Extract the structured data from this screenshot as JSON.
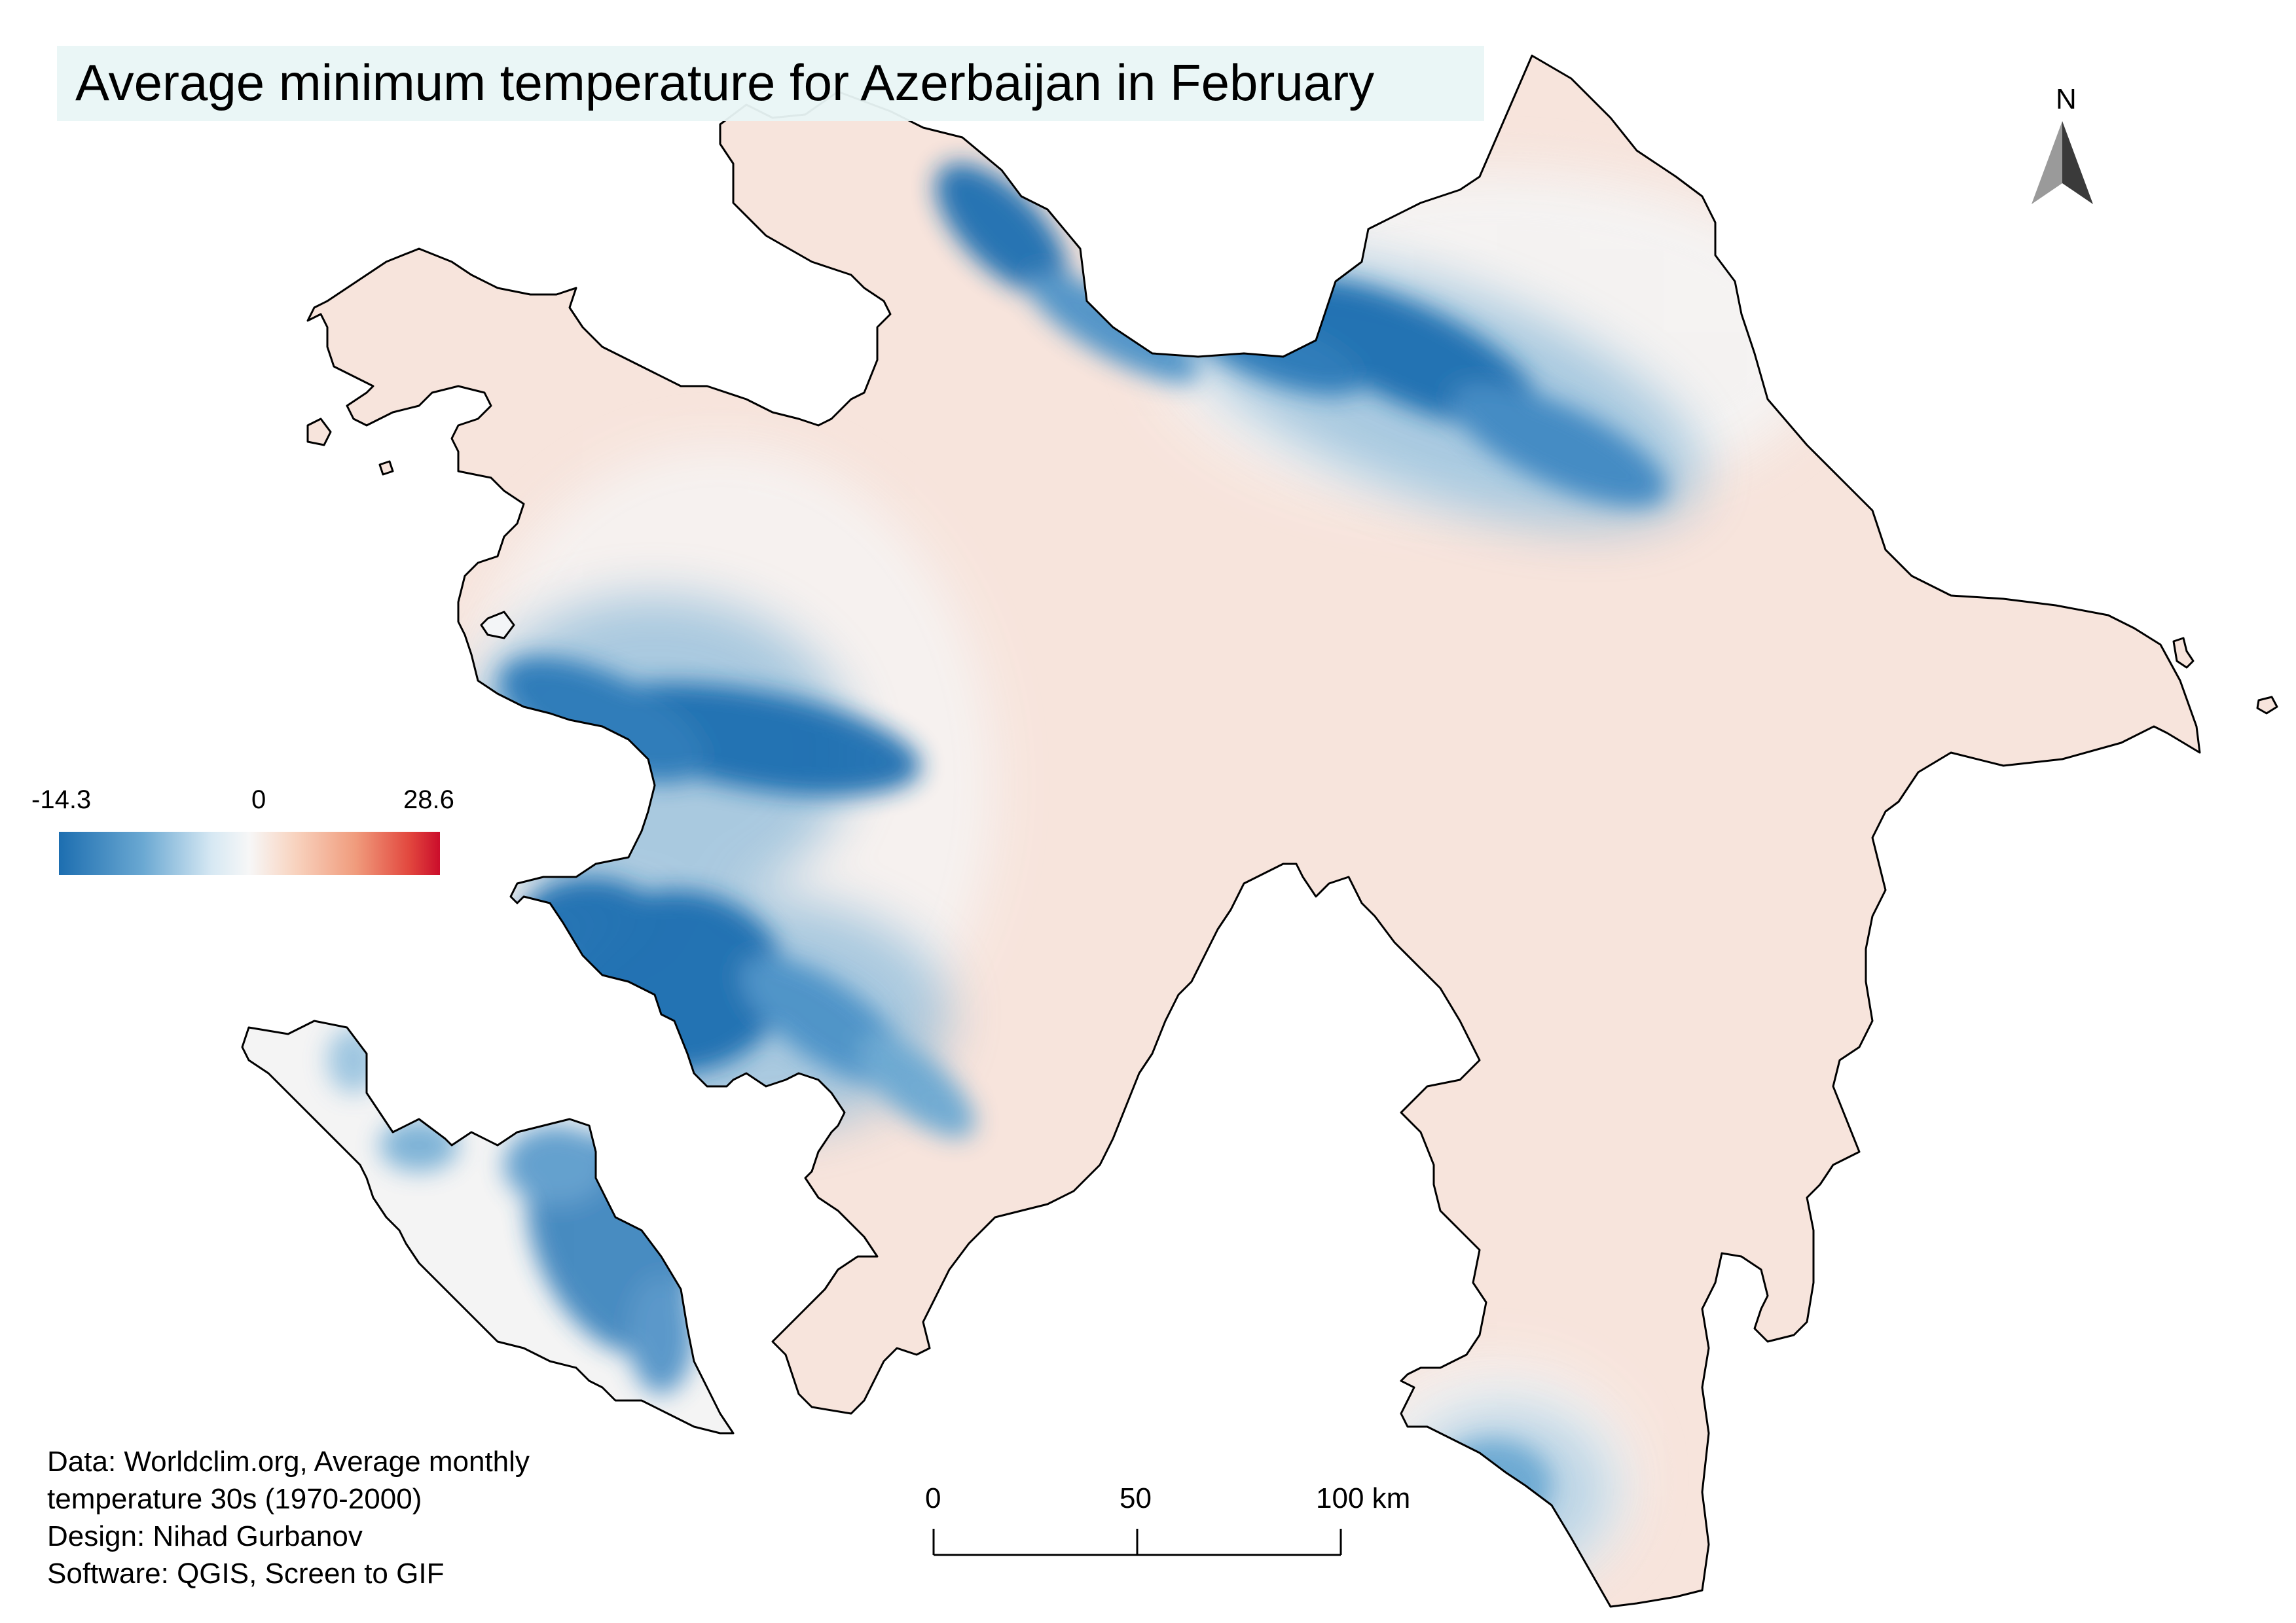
{
  "title": "Average minimum temperature for Azerbaijan in February",
  "legend": {
    "min_label": "-14.3",
    "mid_label": "0",
    "max_label": "28.6",
    "min_value": -14.3,
    "mid_value": 0,
    "max_value": 28.6,
    "colors": {
      "cold": "#1d6eb0",
      "neutral": "#f7f7f7",
      "warm_light": "#f7e4dc",
      "hot": "#cb0d2b"
    }
  },
  "north_arrow": {
    "label": "N",
    "icon": "north-arrow-icon"
  },
  "scale_bar": {
    "labels": [
      "0",
      "50",
      "100 km"
    ],
    "values_km": [
      0,
      50,
      100
    ]
  },
  "credits": [
    "Data: Worldclim.org, Average monthly",
    "temperature 30s (1970-2000)",
    "Design: Nihad Gurbanov",
    "Software: QGIS, Screen to GIF"
  ],
  "map_colors": {
    "lowland_fill": "#f7e4dc",
    "boundary": "#000000",
    "mountain_cold": "#1d6eb0"
  }
}
